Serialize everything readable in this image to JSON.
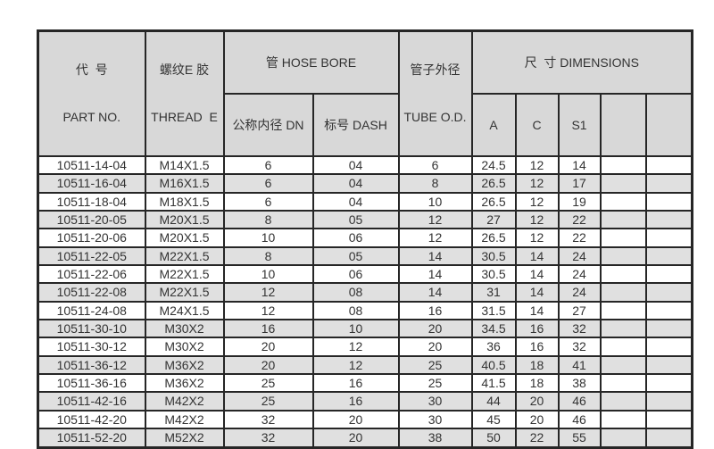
{
  "colors": {
    "border": "#262626",
    "text": "#333333",
    "header_bg": "#d8d8d8",
    "stripe_bg": "#e0e0e0",
    "page_bg": "#ffffff"
  },
  "table": {
    "header": {
      "part_no_zh": "代  号",
      "part_no_en": "PART NO.",
      "thread_zh": "螺纹E 胶",
      "thread_en": "THREAD  E",
      "hose_bore_group": "管 HOSE BORE",
      "dn": "公称内径 DN",
      "dash": "标号 DASH",
      "tube_od_zh": "管子外径",
      "tube_od_en": "TUBE O.D.",
      "dimensions_group": "尺  寸 DIMENSIONS",
      "a": "A",
      "c": "C",
      "s1": "S1",
      "blank1": "",
      "blank2": ""
    },
    "rows": [
      {
        "part_no": "10511-14-04",
        "thread": "M14X1.5",
        "dn": "6",
        "dash": "04",
        "tube_od": "6",
        "a": "24.5",
        "c": "12",
        "s1": "14",
        "x1": "",
        "x2": ""
      },
      {
        "part_no": "10511-16-04",
        "thread": "M16X1.5",
        "dn": "6",
        "dash": "04",
        "tube_od": "8",
        "a": "26.5",
        "c": "12",
        "s1": "17",
        "x1": "",
        "x2": ""
      },
      {
        "part_no": "10511-18-04",
        "thread": "M18X1.5",
        "dn": "6",
        "dash": "04",
        "tube_od": "10",
        "a": "26.5",
        "c": "12",
        "s1": "19",
        "x1": "",
        "x2": ""
      },
      {
        "part_no": "10511-20-05",
        "thread": "M20X1.5",
        "dn": "8",
        "dash": "05",
        "tube_od": "12",
        "a": "27",
        "c": "12",
        "s1": "22",
        "x1": "",
        "x2": ""
      },
      {
        "part_no": "10511-20-06",
        "thread": "M20X1.5",
        "dn": "10",
        "dash": "06",
        "tube_od": "12",
        "a": "26.5",
        "c": "12",
        "s1": "22",
        "x1": "",
        "x2": ""
      },
      {
        "part_no": "10511-22-05",
        "thread": "M22X1.5",
        "dn": "8",
        "dash": "05",
        "tube_od": "14",
        "a": "30.5",
        "c": "14",
        "s1": "24",
        "x1": "",
        "x2": ""
      },
      {
        "part_no": "10511-22-06",
        "thread": "M22X1.5",
        "dn": "10",
        "dash": "06",
        "tube_od": "14",
        "a": "30.5",
        "c": "14",
        "s1": "24",
        "x1": "",
        "x2": ""
      },
      {
        "part_no": "10511-22-08",
        "thread": "M22X1.5",
        "dn": "12",
        "dash": "08",
        "tube_od": "14",
        "a": "31",
        "c": "14",
        "s1": "24",
        "x1": "",
        "x2": ""
      },
      {
        "part_no": "10511-24-08",
        "thread": "M24X1.5",
        "dn": "12",
        "dash": "08",
        "tube_od": "16",
        "a": "31.5",
        "c": "14",
        "s1": "27",
        "x1": "",
        "x2": ""
      },
      {
        "part_no": "10511-30-10",
        "thread": "M30X2",
        "dn": "16",
        "dash": "10",
        "tube_od": "20",
        "a": "34.5",
        "c": "16",
        "s1": "32",
        "x1": "",
        "x2": ""
      },
      {
        "part_no": "10511-30-12",
        "thread": "M30X2",
        "dn": "20",
        "dash": "12",
        "tube_od": "20",
        "a": "36",
        "c": "16",
        "s1": "32",
        "x1": "",
        "x2": ""
      },
      {
        "part_no": "10511-36-12",
        "thread": "M36X2",
        "dn": "20",
        "dash": "12",
        "tube_od": "25",
        "a": "40.5",
        "c": "18",
        "s1": "41",
        "x1": "",
        "x2": ""
      },
      {
        "part_no": "10511-36-16",
        "thread": "M36X2",
        "dn": "25",
        "dash": "16",
        "tube_od": "25",
        "a": "41.5",
        "c": "18",
        "s1": "38",
        "x1": "",
        "x2": ""
      },
      {
        "part_no": "10511-42-16",
        "thread": "M42X2",
        "dn": "25",
        "dash": "16",
        "tube_od": "30",
        "a": "44",
        "c": "20",
        "s1": "46",
        "x1": "",
        "x2": ""
      },
      {
        "part_no": "10511-42-20",
        "thread": "M42X2",
        "dn": "32",
        "dash": "20",
        "tube_od": "30",
        "a": "45",
        "c": "20",
        "s1": "46",
        "x1": "",
        "x2": ""
      },
      {
        "part_no": "10511-52-20",
        "thread": "M52X2",
        "dn": "32",
        "dash": "20",
        "tube_od": "38",
        "a": "50",
        "c": "22",
        "s1": "55",
        "x1": "",
        "x2": ""
      }
    ]
  }
}
